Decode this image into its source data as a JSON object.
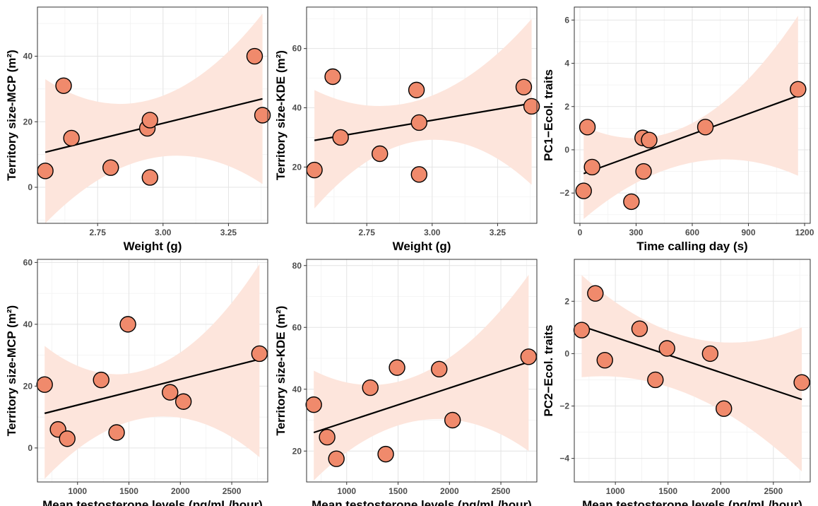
{
  "chart_data": [
    {
      "type": "scatter",
      "xlabel": "Weight (g)",
      "ylabel": "Territory size-MCP (m²)",
      "xlim": [
        2.52,
        3.4
      ],
      "ylim": [
        -11,
        55
      ],
      "xticks": [
        2.75,
        3.0,
        3.25
      ],
      "xtick_labels": [
        "2.75",
        "3.00",
        "3.25"
      ],
      "yticks": [
        0,
        20,
        40
      ],
      "ytick_labels": [
        "0",
        "20",
        "40"
      ],
      "points": [
        [
          2.55,
          5
        ],
        [
          2.62,
          31
        ],
        [
          2.65,
          15
        ],
        [
          2.8,
          6
        ],
        [
          2.94,
          18
        ],
        [
          2.95,
          20.5
        ],
        [
          2.95,
          3
        ],
        [
          3.35,
          40
        ],
        [
          3.38,
          22
        ]
      ],
      "fit": {
        "x": [
          2.55,
          3.38
        ],
        "y": [
          10.7,
          27.0
        ]
      },
      "ci": {
        "lower": [
          -11,
          1
        ],
        "mid_lower": 9,
        "upper": [
          33,
          53
        ],
        "mid_upper": 27
      }
    },
    {
      "type": "scatter",
      "xlabel": "Weight (g)",
      "ylabel": "Territory size-KDE (m²)",
      "xlim": [
        2.52,
        3.4
      ],
      "ylim": [
        1,
        74
      ],
      "xticks": [
        2.75,
        3.0,
        3.25
      ],
      "xtick_labels": [
        "2.75",
        "3.00",
        "3.25"
      ],
      "yticks": [
        20,
        40,
        60
      ],
      "ytick_labels": [
        "20",
        "40",
        "60"
      ],
      "points": [
        [
          2.55,
          19
        ],
        [
          2.62,
          50.5
        ],
        [
          2.65,
          30
        ],
        [
          2.8,
          24.5
        ],
        [
          2.94,
          46
        ],
        [
          2.95,
          35
        ],
        [
          2.95,
          17.5
        ],
        [
          3.35,
          47
        ],
        [
          3.38,
          40.5
        ]
      ],
      "fit": {
        "x": [
          2.55,
          3.38
        ],
        "y": [
          29.0,
          41.5
        ]
      },
      "ci": {
        "lower": [
          6,
          14
        ],
        "mid_lower": 29,
        "upper": [
          46,
          70
        ],
        "mid_upper": 43
      }
    },
    {
      "type": "scatter",
      "xlabel": "Time calling day (s)",
      "ylabel": "PC1−Ecol. traits",
      "xlim": [
        -30,
        1230
      ],
      "ylim": [
        -3.4,
        6.6
      ],
      "xticks": [
        0,
        300,
        600,
        900,
        1200
      ],
      "xtick_labels": [
        "0",
        "300",
        "600",
        "900",
        "1200"
      ],
      "yticks": [
        -2,
        0,
        2,
        4,
        6
      ],
      "ytick_labels": [
        "−2",
        "0",
        "2",
        "4",
        "6"
      ],
      "points": [
        [
          20,
          -1.9
        ],
        [
          40,
          1.05
        ],
        [
          65,
          -0.8
        ],
        [
          275,
          -2.4
        ],
        [
          335,
          0.55
        ],
        [
          340,
          -1.0
        ],
        [
          370,
          0.45
        ],
        [
          670,
          1.05
        ],
        [
          1165,
          2.8
        ]
      ],
      "fit": {
        "x": [
          20,
          1165
        ],
        "y": [
          -1.1,
          2.5
        ]
      },
      "ci": {
        "lower": [
          -3.2,
          -1.2
        ],
        "mid_lower": -0.6,
        "upper": [
          1.1,
          6.2
        ],
        "mid_upper": 1.2
      }
    },
    {
      "type": "scatter",
      "xlabel": "Mean testosterone levels (pg/mL/hour)",
      "ylabel": "Territory size-MCP (m²)",
      "xlim": [
        610,
        2850
      ],
      "ylim": [
        -11,
        61
      ],
      "xticks": [
        1000,
        1500,
        2000,
        2500
      ],
      "xtick_labels": [
        "1000",
        "1500",
        "2000",
        "2500"
      ],
      "yticks": [
        0,
        20,
        40,
        60
      ],
      "ytick_labels": [
        "0",
        "20",
        "40",
        "60"
      ],
      "points": [
        [
          680,
          20.5
        ],
        [
          810,
          6
        ],
        [
          900,
          3
        ],
        [
          1230,
          22
        ],
        [
          1380,
          5
        ],
        [
          1490,
          40
        ],
        [
          1900,
          18
        ],
        [
          2030,
          15
        ],
        [
          2770,
          30.5
        ]
      ],
      "fit": {
        "x": [
          680,
          2770
        ],
        "y": [
          11.2,
          28.7
        ]
      },
      "ci": {
        "lower": [
          -10,
          -3
        ],
        "mid_lower": 10,
        "upper": [
          33,
          59.5
        ],
        "mid_upper": 26
      }
    },
    {
      "type": "scatter",
      "xlabel": "Mean testosterone levels (pg/mL/hour)",
      "ylabel": "Territory size-KDE (m²)",
      "xlim": [
        610,
        2850
      ],
      "ylim": [
        10,
        82
      ],
      "xticks": [
        1000,
        1500,
        2000,
        2500
      ],
      "xtick_labels": [
        "1000",
        "1500",
        "2000",
        "2500"
      ],
      "yticks": [
        20,
        40,
        60,
        80
      ],
      "ytick_labels": [
        "20",
        "40",
        "60",
        "80"
      ],
      "points": [
        [
          680,
          35
        ],
        [
          810,
          24.5
        ],
        [
          900,
          17.5
        ],
        [
          1230,
          40.5
        ],
        [
          1380,
          19
        ],
        [
          1490,
          47
        ],
        [
          1900,
          46.5
        ],
        [
          2030,
          30
        ],
        [
          2770,
          50.5
        ]
      ],
      "fit": {
        "x": [
          680,
          2770
        ],
        "y": [
          26.0,
          48.8
        ]
      },
      "ci": {
        "lower": [
          10.5,
          20
        ],
        "mid_lower": 30,
        "upper": [
          46,
          77
        ],
        "mid_upper": 45
      }
    },
    {
      "type": "scatter",
      "xlabel": "Mean testosterone levels (pg/mL/hour)",
      "ylabel": "PC2−Ecol. traits",
      "xlim": [
        610,
        2850
      ],
      "ylim": [
        -4.9,
        3.6
      ],
      "xticks": [
        1000,
        1500,
        2000,
        2500
      ],
      "xtick_labels": [
        "1000",
        "1500",
        "2000",
        "2500"
      ],
      "yticks": [
        -4,
        -2,
        0,
        2
      ],
      "ytick_labels": [
        "−4",
        "−2",
        "0",
        "2"
      ],
      "points": [
        [
          680,
          0.9
        ],
        [
          810,
          2.3
        ],
        [
          900,
          -0.25
        ],
        [
          1230,
          0.95
        ],
        [
          1380,
          -1.0
        ],
        [
          1490,
          0.2
        ],
        [
          1900,
          0.0
        ],
        [
          2030,
          -2.1
        ],
        [
          2770,
          -1.1
        ]
      ],
      "fit": {
        "x": [
          680,
          2770
        ],
        "y": [
          1.05,
          -1.75
        ]
      },
      "ci": {
        "lower": [
          -0.9,
          -4.5
        ],
        "mid_lower": -1.6,
        "upper": [
          3.0,
          1.0
        ],
        "mid_upper": 0.6
      }
    }
  ]
}
